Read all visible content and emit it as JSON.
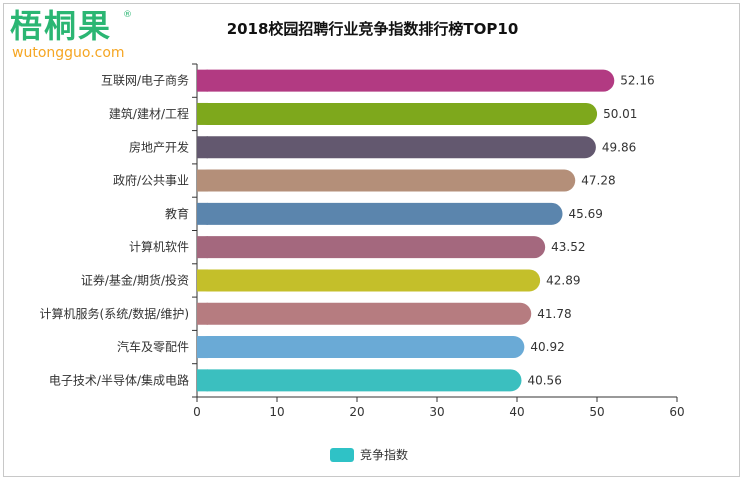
{
  "logo": {
    "name": "梧桐果",
    "reg": "®",
    "url": "wutongguo.com"
  },
  "chart_data": {
    "type": "bar",
    "orientation": "horizontal",
    "title": "2018校园招聘行业竞争指数排行榜TOP10",
    "categories": [
      "互联网/电子商务",
      "建筑/建材/工程",
      "房地产开发",
      "政府/公共事业",
      "教育",
      "计算机软件",
      "证券/基金/期货/投资",
      "计算机服务(系统/数据/维护)",
      "汽车及零配件",
      "电子技术/半导体/集成电路"
    ],
    "series": [
      {
        "name": "竞争指数",
        "values": [
          52.16,
          50.01,
          49.86,
          47.28,
          45.69,
          43.52,
          42.89,
          41.78,
          40.92,
          40.56
        ],
        "value_labels": [
          "52.16",
          "50.01",
          "49.86",
          "47.28",
          "45.69",
          "43.52",
          "42.89",
          "41.78",
          "40.92",
          "40.56"
        ]
      }
    ],
    "bar_colors": [
      "#b23a82",
      "#7ea81c",
      "#63586f",
      "#b48f79",
      "#5b85ad",
      "#a4687e",
      "#c4bf2a",
      "#b67c80",
      "#6aaad6",
      "#3bbfbf"
    ],
    "legend_color": "#2fc2c6",
    "xlim": [
      0,
      60
    ],
    "xticks": [
      "0",
      "10",
      "20",
      "30",
      "40",
      "50",
      "60"
    ],
    "legend_position": "bottom-center",
    "grid": false
  }
}
